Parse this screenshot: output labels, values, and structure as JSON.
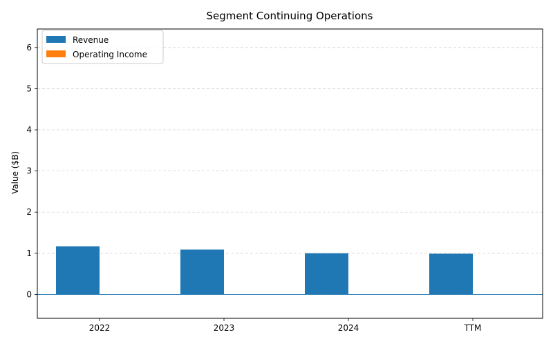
{
  "chart_data": {
    "type": "bar",
    "title": "Segment Continuing Operations",
    "xlabel": "",
    "ylabel": "Value ($B)",
    "categories": [
      "2022",
      "2023",
      "2024",
      "TTM"
    ],
    "series": [
      {
        "name": "Revenue",
        "color": "#1f77b4",
        "values": [
          1.17,
          1.09,
          1.0,
          0.99
        ]
      },
      {
        "name": "Operating Income",
        "color": "#ff7f0e",
        "values": [
          0,
          0,
          0,
          0
        ]
      }
    ],
    "ylim": [
      -0.58,
      6.45
    ],
    "yticks": [
      0,
      1,
      2,
      3,
      4,
      5,
      6
    ],
    "grid": "y-dashed",
    "legend_position": "top-left",
    "zero_line_color": "#1f77b4"
  }
}
